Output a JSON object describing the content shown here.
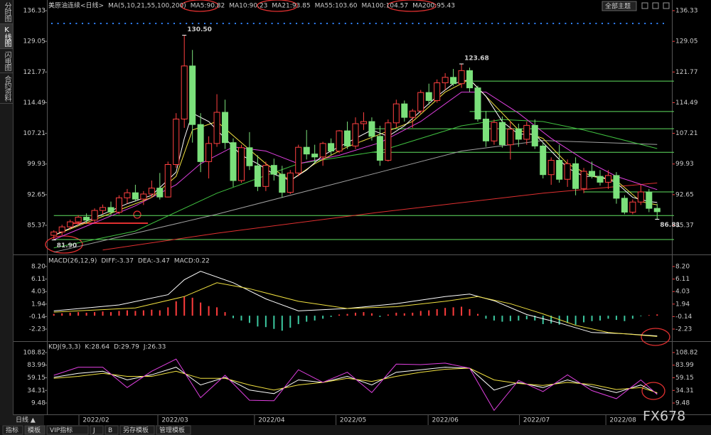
{
  "ui": {
    "sidebar_tabs": [
      "分时图",
      "K线图",
      "闪电图",
      "合约资料"
    ],
    "theme_select": "全部主题",
    "period_button": "日线 ▲",
    "bottom_tabs": [
      "指标",
      "模板",
      "VIP指标",
      "J",
      "B",
      "另存模板",
      "管理模板"
    ],
    "watermark": "FX678"
  },
  "chart_data": [
    {
      "type": "candlestick",
      "title": "美原油连续<日线>",
      "indicator": "MA(5,10,21,55,100,200)",
      "up_color": "#ff4040",
      "down_color": "#7be07b",
      "xlim": [
        -0.5,
        74.5
      ],
      "ylim": [
        78.96,
        136.33
      ],
      "yticks": [
        136.33,
        129.05,
        121.77,
        114.49,
        107.21,
        99.93,
        92.65,
        85.37
      ],
      "ohlc": [
        [
          83.0,
          84.2,
          81.9,
          83.8
        ],
        [
          83.8,
          85.5,
          83.0,
          85.0
        ],
        [
          85.0,
          86.7,
          84.3,
          86.2
        ],
        [
          86.2,
          87.8,
          85.4,
          87.3
        ],
        [
          87.3,
          88.2,
          85.8,
          86.6
        ],
        [
          86.6,
          89.4,
          86.0,
          88.9
        ],
        [
          88.9,
          90.3,
          88.0,
          89.6
        ],
        [
          89.6,
          91.0,
          87.8,
          88.5
        ],
        [
          88.5,
          92.5,
          88.0,
          91.9
        ],
        [
          91.9,
          94.0,
          90.5,
          93.1
        ],
        [
          93.1,
          95.0,
          91.0,
          91.6
        ],
        [
          91.6,
          93.5,
          90.2,
          92.8
        ],
        [
          92.8,
          96.0,
          92.0,
          94.2
        ],
        [
          94.2,
          97.8,
          91.5,
          92.1
        ],
        [
          92.1,
          100.5,
          92.0,
          99.8
        ],
        [
          99.8,
          112.0,
          99.0,
          110.6
        ],
        [
          110.6,
          130.5,
          108.5,
          123.2
        ],
        [
          123.2,
          127.0,
          105.0,
          109.3
        ],
        [
          109.3,
          112.0,
          98.0,
          100.5
        ],
        [
          100.5,
          106.5,
          96.5,
          104.8
        ],
        [
          104.8,
          116.5,
          104.0,
          112.2
        ],
        [
          112.2,
          115.2,
          103.5,
          105.0
        ],
        [
          105.0,
          106.0,
          94.5,
          96.0
        ],
        [
          96.0,
          104.5,
          95.5,
          103.8
        ],
        [
          103.8,
          107.5,
          98.5,
          99.5
        ],
        [
          99.5,
          102.0,
          93.5,
          94.6
        ],
        [
          94.6,
          100.5,
          93.5,
          99.6
        ],
        [
          99.6,
          101.2,
          96.0,
          97.5
        ],
        [
          97.5,
          99.5,
          92.0,
          93.2
        ],
        [
          93.2,
          98.5,
          92.8,
          97.8
        ],
        [
          97.8,
          104.5,
          97.0,
          103.9
        ],
        [
          103.9,
          108.0,
          101.0,
          102.3
        ],
        [
          102.3,
          104.5,
          100.0,
          101.6
        ],
        [
          101.6,
          105.2,
          99.5,
          104.8
        ],
        [
          104.8,
          106.0,
          102.0,
          103.0
        ],
        [
          103.0,
          108.0,
          102.5,
          107.8
        ],
        [
          107.8,
          110.0,
          103.5,
          104.2
        ],
        [
          104.2,
          111.0,
          103.5,
          109.5
        ],
        [
          109.5,
          112.2,
          108.0,
          110.0
        ],
        [
          110.0,
          111.0,
          105.5,
          106.5
        ],
        [
          106.5,
          109.0,
          99.5,
          100.8
        ],
        [
          100.8,
          110.5,
          100.5,
          109.7
        ],
        [
          109.7,
          115.2,
          108.5,
          114.2
        ],
        [
          114.2,
          115.0,
          110.0,
          111.0
        ],
        [
          111.0,
          113.0,
          108.5,
          112.5
        ],
        [
          112.5,
          117.5,
          111.8,
          116.9
        ],
        [
          116.9,
          119.0,
          114.0,
          115.0
        ],
        [
          115.0,
          120.0,
          114.5,
          119.2
        ],
        [
          119.2,
          121.5,
          117.5,
          120.5
        ],
        [
          120.5,
          122.5,
          118.5,
          119.0
        ],
        [
          119.0,
          123.68,
          118.0,
          122.1
        ],
        [
          122.1,
          122.8,
          117.0,
          118.0
        ],
        [
          118.0,
          118.5,
          110.0,
          110.6
        ],
        [
          110.6,
          112.5,
          104.0,
          105.4
        ],
        [
          105.4,
          110.5,
          104.5,
          109.8
        ],
        [
          109.8,
          111.2,
          103.8,
          104.5
        ],
        [
          104.5,
          110.0,
          101.0,
          108.2
        ],
        [
          108.2,
          109.5,
          104.0,
          105.8
        ],
        [
          105.8,
          110.0,
          104.5,
          109.1
        ],
        [
          109.1,
          110.5,
          103.5,
          104.2
        ],
        [
          104.2,
          105.0,
          96.5,
          97.4
        ],
        [
          97.4,
          101.5,
          95.0,
          100.8
        ],
        [
          100.8,
          104.5,
          95.5,
          96.3
        ],
        [
          96.3,
          101.0,
          94.5,
          100.0
        ],
        [
          100.0,
          101.5,
          92.5,
          94.1
        ],
        [
          94.1,
          99.0,
          93.0,
          98.2
        ],
        [
          98.2,
          100.5,
          96.5,
          97.0
        ],
        [
          97.0,
          98.5,
          94.8,
          95.6
        ],
        [
          95.6,
          98.5,
          94.0,
          97.2
        ],
        [
          97.2,
          98.0,
          90.5,
          91.8
        ],
        [
          91.8,
          92.5,
          88.0,
          88.5
        ],
        [
          88.5,
          91.5,
          88.0,
          90.9
        ],
        [
          90.9,
          95.0,
          90.2,
          93.3
        ],
        [
          93.3,
          94.0,
          88.5,
          89.4
        ],
        [
          89.4,
          90.5,
          86.81,
          88.6
        ]
      ],
      "series": [
        {
          "name": "MA5",
          "label": "MA5:90.82",
          "color": "#ffffff",
          "x": [
            0,
            3,
            6,
            9,
            12,
            15,
            16,
            17,
            19,
            21,
            23,
            25,
            27,
            29,
            31,
            33,
            35,
            37,
            39,
            41,
            43,
            45,
            47,
            49,
            51,
            53,
            55,
            57,
            59,
            61,
            63,
            65,
            67,
            69,
            71,
            73,
            74
          ],
          "values": [
            83,
            85.5,
            88,
            90.5,
            92.5,
            98,
            106,
            112,
            110,
            106,
            102,
            100,
            97.5,
            96,
            98.5,
            102,
            104,
            106,
            108,
            106.5,
            109,
            112.5,
            116,
            119,
            120,
            116,
            110,
            107,
            107,
            103,
            99,
            97,
            97,
            95.5,
            92,
            91,
            90.82
          ]
        },
        {
          "name": "MA10",
          "label": "MA10:90.23",
          "color": "#f0e040",
          "x": [
            0,
            4,
            8,
            12,
            15,
            17,
            20,
            23,
            26,
            29,
            32,
            36,
            40,
            44,
            48,
            51,
            54,
            57,
            60,
            63,
            66,
            69,
            72,
            74
          ],
          "values": [
            83,
            86,
            89,
            92,
            97,
            108,
            110,
            105,
            100,
            96,
            100,
            104,
            107,
            110,
            117,
            120,
            114,
            108,
            106,
            100,
            97,
            96,
            91,
            90.23
          ]
        },
        {
          "name": "MA21",
          "label": "MA21:93.85",
          "color": "#e040e0",
          "x": [
            0,
            5,
            10,
            15,
            18,
            22,
            26,
            30,
            35,
            40,
            45,
            50,
            53,
            57,
            61,
            65,
            69,
            74
          ],
          "values": [
            82,
            86,
            90,
            95,
            100,
            104,
            103,
            100,
            102,
            105,
            110,
            117,
            117,
            112,
            106,
            101,
            97,
            93.85
          ]
        },
        {
          "name": "MA55",
          "label": "MA55:103.60",
          "color": "#40c040",
          "x": [
            0,
            10,
            20,
            30,
            40,
            50,
            55,
            60,
            65,
            74
          ],
          "values": [
            80,
            84,
            93,
            100,
            103,
            109,
            110.5,
            110,
            108,
            103.6
          ]
        },
        {
          "name": "MA100",
          "label": "MA100:104.57",
          "color": "#a0a0a0",
          "x": [
            0,
            20,
            40,
            50,
            60,
            74
          ],
          "values": [
            79,
            88,
            98,
            103,
            105.5,
            104.57
          ]
        },
        {
          "name": "MA200",
          "label": "MA200:95.43",
          "color": "#e03030",
          "x": [
            6,
            20,
            40,
            60,
            74
          ],
          "values": [
            79.5,
            83.5,
            88.5,
            93.0,
            95.43
          ]
        }
      ],
      "annotations": [
        {
          "index": 16,
          "value": 130.5,
          "label": "130.50",
          "color": "#ff5050"
        },
        {
          "index": 50,
          "value": 123.68,
          "label": "123.68",
          "color": "#ff5050"
        },
        {
          "index": 0,
          "value": 81.9,
          "label": "81.90",
          "color": "#60e060"
        },
        {
          "index": 74,
          "value": 86.81,
          "label": "86.81",
          "color": "#60e060"
        }
      ],
      "level_lines": [
        {
          "value": 119.6,
          "from": 51,
          "color": "#60e060"
        },
        {
          "value": 112.4,
          "from": 51,
          "color": "#60e060"
        },
        {
          "value": 108.3,
          "from": 39,
          "color": "#60e060"
        },
        {
          "value": 102.7,
          "from": 39,
          "color": "#60e060"
        },
        {
          "value": 93.3,
          "from": 65,
          "color": "#60e060"
        },
        {
          "value": 87.7,
          "from": 0,
          "color": "#60e060"
        },
        {
          "value": 82.0,
          "from": 0,
          "color": "#60e060"
        }
      ]
    },
    {
      "type": "macd",
      "title": "MACD(26,12,9)",
      "xlim": [
        -0.5,
        74.5
      ],
      "ylim": [
        -4.01,
        9.74
      ],
      "yticks": [
        {
          "value": 8.2,
          "label": "8.20"
        },
        6.11,
        4.03,
        1.94,
        -0.14,
        -2.23
      ],
      "up_color": "#ff3c3c",
      "down_color": "#3cc8a0",
      "hist_label": "MACD:0.22",
      "hist_label_color": "#e040e0",
      "histogram": [
        0.3,
        0.4,
        0.5,
        0.6,
        0.5,
        0.6,
        0.7,
        0.6,
        0.8,
        0.9,
        0.8,
        0.9,
        1.0,
        0.9,
        1.4,
        2.4,
        3.2,
        3.0,
        2.2,
        1.6,
        1.4,
        0.6,
        -0.4,
        -0.8,
        -1.2,
        -1.8,
        -1.9,
        -2.2,
        -2.5,
        -2.0,
        -1.4,
        -1.0,
        -0.8,
        -0.5,
        -0.2,
        0.2,
        0.3,
        0.5,
        0.6,
        0.4,
        -0.2,
        0.2,
        0.5,
        0.4,
        0.5,
        0.8,
        0.9,
        1.1,
        1.3,
        1.4,
        1.5,
        1.1,
        0.3,
        -0.5,
        -0.8,
        -1.0,
        -0.9,
        -0.8,
        -0.6,
        -0.8,
        -1.4,
        -1.3,
        -1.5,
        -1.2,
        -1.5,
        -1.1,
        -0.9,
        -0.8,
        -0.5,
        -0.7,
        -0.9,
        -0.5,
        -0.1,
        0.1,
        0.22
      ],
      "series": [
        {
          "name": "DIFF",
          "label": "DIFF:-3.37",
          "color": "#ffffff",
          "x": [
            0,
            8,
            14,
            16,
            18,
            22,
            26,
            30,
            36,
            42,
            48,
            51,
            54,
            58,
            62,
            66,
            70,
            74
          ],
          "values": [
            0.8,
            1.8,
            3.5,
            6.0,
            7.4,
            5.5,
            2.8,
            0.8,
            1.2,
            2.0,
            3.2,
            3.6,
            2.5,
            0.2,
            -1.2,
            -2.8,
            -3.0,
            -3.37
          ]
        },
        {
          "name": "DEA",
          "label": "DEA:-3.47",
          "color": "#f0e040",
          "x": [
            0,
            10,
            16,
            20,
            24,
            30,
            36,
            42,
            48,
            52,
            56,
            60,
            64,
            68,
            74
          ],
          "values": [
            0.6,
            1.3,
            3.2,
            5.5,
            4.5,
            2.4,
            1.2,
            1.5,
            2.4,
            3.2,
            2.0,
            0.3,
            -1.6,
            -2.8,
            -3.47
          ]
        }
      ]
    },
    {
      "type": "kdj",
      "title": "KDJ(9,3,3)",
      "xlim": [
        -0.5,
        74.5
      ],
      "ylim": [
        -11.5,
        128.4
      ],
      "yticks": [
        108.82,
        83.99,
        59.15,
        34.31,
        9.48
      ],
      "xticks": [
        {
          "value": 5.17,
          "label": "2022/02"
        },
        {
          "value": 14.85,
          "label": "2022/03"
        },
        {
          "value": 26.7,
          "label": "2022/04"
        },
        {
          "value": 36.7,
          "label": "2022/05"
        },
        {
          "value": 48.0,
          "label": "2022/06"
        },
        {
          "value": 59.2,
          "label": "2022/07"
        },
        {
          "value": 69.8,
          "label": "2022/08"
        }
      ],
      "series": [
        {
          "name": "K",
          "label": "K:28.64",
          "color": "#ffffff",
          "x": [
            0,
            3,
            6,
            9,
            12,
            15,
            18,
            21,
            24,
            27,
            30,
            33,
            36,
            39,
            42,
            45,
            48,
            51,
            54,
            57,
            60,
            63,
            66,
            69,
            72,
            74
          ],
          "values": [
            60,
            68,
            72,
            55,
            65,
            80,
            45,
            60,
            35,
            28,
            55,
            50,
            62,
            45,
            70,
            75,
            80,
            78,
            35,
            50,
            40,
            55,
            42,
            30,
            45,
            28.64
          ]
        },
        {
          "name": "D",
          "label": "D:29.79",
          "color": "#f0e040",
          "x": [
            0,
            3,
            6,
            9,
            12,
            15,
            18,
            21,
            24,
            27,
            30,
            33,
            36,
            39,
            42,
            45,
            48,
            51,
            54,
            57,
            60,
            63,
            66,
            69,
            72,
            74
          ],
          "values": [
            58,
            62,
            68,
            62,
            62,
            72,
            58,
            58,
            45,
            35,
            45,
            50,
            58,
            52,
            62,
            70,
            76,
            78,
            55,
            48,
            44,
            50,
            46,
            36,
            40,
            29.79
          ]
        },
        {
          "name": "J",
          "label": "J:26.33",
          "color": "#e040e0",
          "x": [
            0,
            3,
            6,
            9,
            12,
            15,
            18,
            21,
            24,
            27,
            30,
            33,
            36,
            39,
            42,
            45,
            48,
            51,
            54,
            57,
            60,
            63,
            66,
            69,
            72,
            74
          ],
          "values": [
            64,
            80,
            80,
            40,
            72,
            96,
            20,
            64,
            15,
            14,
            75,
            50,
            70,
            30,
            86,
            85,
            88,
            78,
            -5,
            54,
            32,
            65,
            34,
            18,
            55,
            26.33
          ]
        }
      ]
    }
  ]
}
